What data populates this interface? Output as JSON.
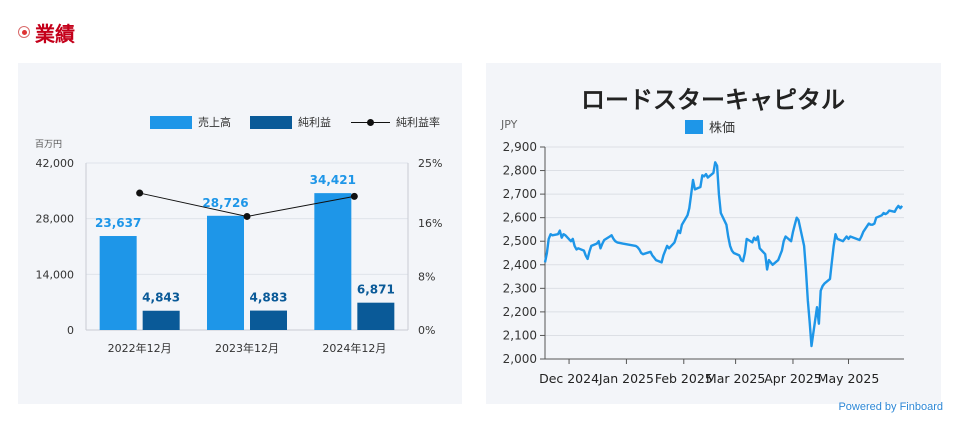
{
  "section": {
    "title": "業績"
  },
  "powered_by": "Powered by Finboard",
  "chart_data": [
    {
      "type": "bar",
      "categories": [
        "2022年12月",
        "2023年12月",
        "2024年12月"
      ],
      "series": [
        {
          "name": "売上高",
          "values": [
            23637,
            28726,
            34421
          ],
          "labels": [
            "23,637",
            "28,726",
            "34,421"
          ],
          "color": "#1e96e8"
        },
        {
          "name": "純利益",
          "values": [
            4843,
            4883,
            6871
          ],
          "labels": [
            "4,843",
            "4,883",
            "6,871"
          ],
          "color": "#0a5a98"
        }
      ],
      "line_series": {
        "name": "純利益率",
        "values": [
          20.5,
          17.0,
          20.0
        ],
        "color": "#111111"
      },
      "ylabel": "百万円",
      "ylim": [
        0,
        42000
      ],
      "yticks": [
        "0",
        "14,000",
        "28,000",
        "42,000"
      ],
      "ytick_values": [
        0,
        14000,
        28000,
        42000
      ],
      "y2lim": [
        0,
        25
      ],
      "y2ticks": [
        "0%",
        "8%",
        "16%",
        "25%"
      ],
      "y2tick_values": [
        0,
        8,
        16,
        25
      ],
      "legend": "top"
    },
    {
      "type": "line",
      "title": "ロードスターキャピタル",
      "ylabel": "JPY",
      "series": [
        {
          "name": "株価",
          "color": "#1e96e8"
        }
      ],
      "ylim": [
        2000,
        2900
      ],
      "yticks": [
        "2,000",
        "2,100",
        "2,200",
        "2,300",
        "2,400",
        "2,500",
        "2,600",
        "2,700",
        "2,800",
        "2,900"
      ],
      "ytick_values": [
        2000,
        2100,
        2200,
        2300,
        2400,
        2500,
        2600,
        2700,
        2800,
        2900
      ],
      "xlim": [
        "2024-11-18",
        "2025-05-31"
      ],
      "xticks": [
        {
          "label": "Dec 2024",
          "date": "2024-12-01"
        },
        {
          "label": "Jan 2025",
          "date": "2025-01-01"
        },
        {
          "label": "Feb 2025",
          "date": "2025-02-01"
        },
        {
          "label": "Mar 2025",
          "date": "2025-03-01"
        },
        {
          "label": "Apr 2025",
          "date": "2025-04-01"
        },
        {
          "label": "May 2025",
          "date": "2025-05-01"
        }
      ],
      "grid": true,
      "legend": "top",
      "points": [
        [
          "2024-11-18",
          2410
        ],
        [
          "2024-11-19",
          2450
        ],
        [
          "2024-11-20",
          2510
        ],
        [
          "2024-11-21",
          2530
        ],
        [
          "2024-11-22",
          2525
        ],
        [
          "2024-11-25",
          2530
        ],
        [
          "2024-11-26",
          2545
        ],
        [
          "2024-11-27",
          2515
        ],
        [
          "2024-11-28",
          2530
        ],
        [
          "2024-11-29",
          2525
        ],
        [
          "2024-12-02",
          2500
        ],
        [
          "2024-12-03",
          2510
        ],
        [
          "2024-12-04",
          2480
        ],
        [
          "2024-12-05",
          2465
        ],
        [
          "2024-12-06",
          2470
        ],
        [
          "2024-12-09",
          2460
        ],
        [
          "2024-12-10",
          2440
        ],
        [
          "2024-12-11",
          2425
        ],
        [
          "2024-12-12",
          2455
        ],
        [
          "2024-12-13",
          2480
        ],
        [
          "2024-12-16",
          2490
        ],
        [
          "2024-12-17",
          2500
        ],
        [
          "2024-12-18",
          2470
        ],
        [
          "2024-12-19",
          2490
        ],
        [
          "2024-12-20",
          2505
        ],
        [
          "2024-12-23",
          2520
        ],
        [
          "2024-12-24",
          2525
        ],
        [
          "2024-12-25",
          2510
        ],
        [
          "2024-12-26",
          2500
        ],
        [
          "2024-12-27",
          2495
        ],
        [
          "2024-12-30",
          2490
        ],
        [
          "2025-01-06",
          2480
        ],
        [
          "2025-01-07",
          2475
        ],
        [
          "2025-01-08",
          2465
        ],
        [
          "2025-01-09",
          2450
        ],
        [
          "2025-01-10",
          2445
        ],
        [
          "2025-01-14",
          2455
        ],
        [
          "2025-01-15",
          2440
        ],
        [
          "2025-01-16",
          2430
        ],
        [
          "2025-01-17",
          2420
        ],
        [
          "2025-01-20",
          2410
        ],
        [
          "2025-01-21",
          2440
        ],
        [
          "2025-01-22",
          2460
        ],
        [
          "2025-01-23",
          2480
        ],
        [
          "2025-01-24",
          2470
        ],
        [
          "2025-01-27",
          2495
        ],
        [
          "2025-01-28",
          2520
        ],
        [
          "2025-01-29",
          2545
        ],
        [
          "2025-01-30",
          2535
        ],
        [
          "2025-01-31",
          2570
        ],
        [
          "2025-02-03",
          2610
        ],
        [
          "2025-02-04",
          2640
        ],
        [
          "2025-02-05",
          2700
        ],
        [
          "2025-02-06",
          2760
        ],
        [
          "2025-02-07",
          2720
        ],
        [
          "2025-02-10",
          2730
        ],
        [
          "2025-02-11",
          2780
        ],
        [
          "2025-02-12",
          2775
        ],
        [
          "2025-02-13",
          2785
        ],
        [
          "2025-02-14",
          2770
        ],
        [
          "2025-02-17",
          2790
        ],
        [
          "2025-02-18",
          2835
        ],
        [
          "2025-02-19",
          2820
        ],
        [
          "2025-02-20",
          2700
        ],
        [
          "2025-02-21",
          2620
        ],
        [
          "2025-02-24",
          2570
        ],
        [
          "2025-02-25",
          2520
        ],
        [
          "2025-02-26",
          2480
        ],
        [
          "2025-02-27",
          2460
        ],
        [
          "2025-02-28",
          2450
        ],
        [
          "2025-03-03",
          2440
        ],
        [
          "2025-03-04",
          2420
        ],
        [
          "2025-03-05",
          2415
        ],
        [
          "2025-03-06",
          2450
        ],
        [
          "2025-03-07",
          2510
        ],
        [
          "2025-03-10",
          2495
        ],
        [
          "2025-03-11",
          2515
        ],
        [
          "2025-03-12",
          2505
        ],
        [
          "2025-03-13",
          2520
        ],
        [
          "2025-03-14",
          2470
        ],
        [
          "2025-03-17",
          2445
        ],
        [
          "2025-03-18",
          2380
        ],
        [
          "2025-03-19",
          2420
        ],
        [
          "2025-03-21",
          2400
        ],
        [
          "2025-03-24",
          2420
        ],
        [
          "2025-03-25",
          2440
        ],
        [
          "2025-03-26",
          2460
        ],
        [
          "2025-03-27",
          2500
        ],
        [
          "2025-03-28",
          2520
        ],
        [
          "2025-03-31",
          2500
        ],
        [
          "2025-04-01",
          2540
        ],
        [
          "2025-04-02",
          2570
        ],
        [
          "2025-04-03",
          2600
        ],
        [
          "2025-04-04",
          2590
        ],
        [
          "2025-04-07",
          2480
        ],
        [
          "2025-04-08",
          2380
        ],
        [
          "2025-04-09",
          2250
        ],
        [
          "2025-04-10",
          2160
        ],
        [
          "2025-04-11",
          2055
        ],
        [
          "2025-04-14",
          2220
        ],
        [
          "2025-04-15",
          2150
        ],
        [
          "2025-04-16",
          2290
        ],
        [
          "2025-04-17",
          2310
        ],
        [
          "2025-04-18",
          2320
        ],
        [
          "2025-04-21",
          2340
        ],
        [
          "2025-04-22",
          2410
        ],
        [
          "2025-04-23",
          2480
        ],
        [
          "2025-04-24",
          2530
        ],
        [
          "2025-04-25",
          2510
        ],
        [
          "2025-04-28",
          2500
        ],
        [
          "2025-04-30",
          2520
        ],
        [
          "2025-05-01",
          2510
        ],
        [
          "2025-05-02",
          2520
        ],
        [
          "2025-05-07",
          2505
        ],
        [
          "2025-05-08",
          2520
        ],
        [
          "2025-05-09",
          2540
        ],
        [
          "2025-05-12",
          2575
        ],
        [
          "2025-05-13",
          2570
        ],
        [
          "2025-05-14",
          2570
        ],
        [
          "2025-05-15",
          2575
        ],
        [
          "2025-05-16",
          2600
        ],
        [
          "2025-05-19",
          2610
        ],
        [
          "2025-05-20",
          2620
        ],
        [
          "2025-05-21",
          2615
        ],
        [
          "2025-05-22",
          2620
        ],
        [
          "2025-05-23",
          2630
        ],
        [
          "2025-05-26",
          2625
        ],
        [
          "2025-05-27",
          2640
        ],
        [
          "2025-05-28",
          2650
        ],
        [
          "2025-05-29",
          2640
        ],
        [
          "2025-05-30",
          2650
        ]
      ]
    }
  ]
}
